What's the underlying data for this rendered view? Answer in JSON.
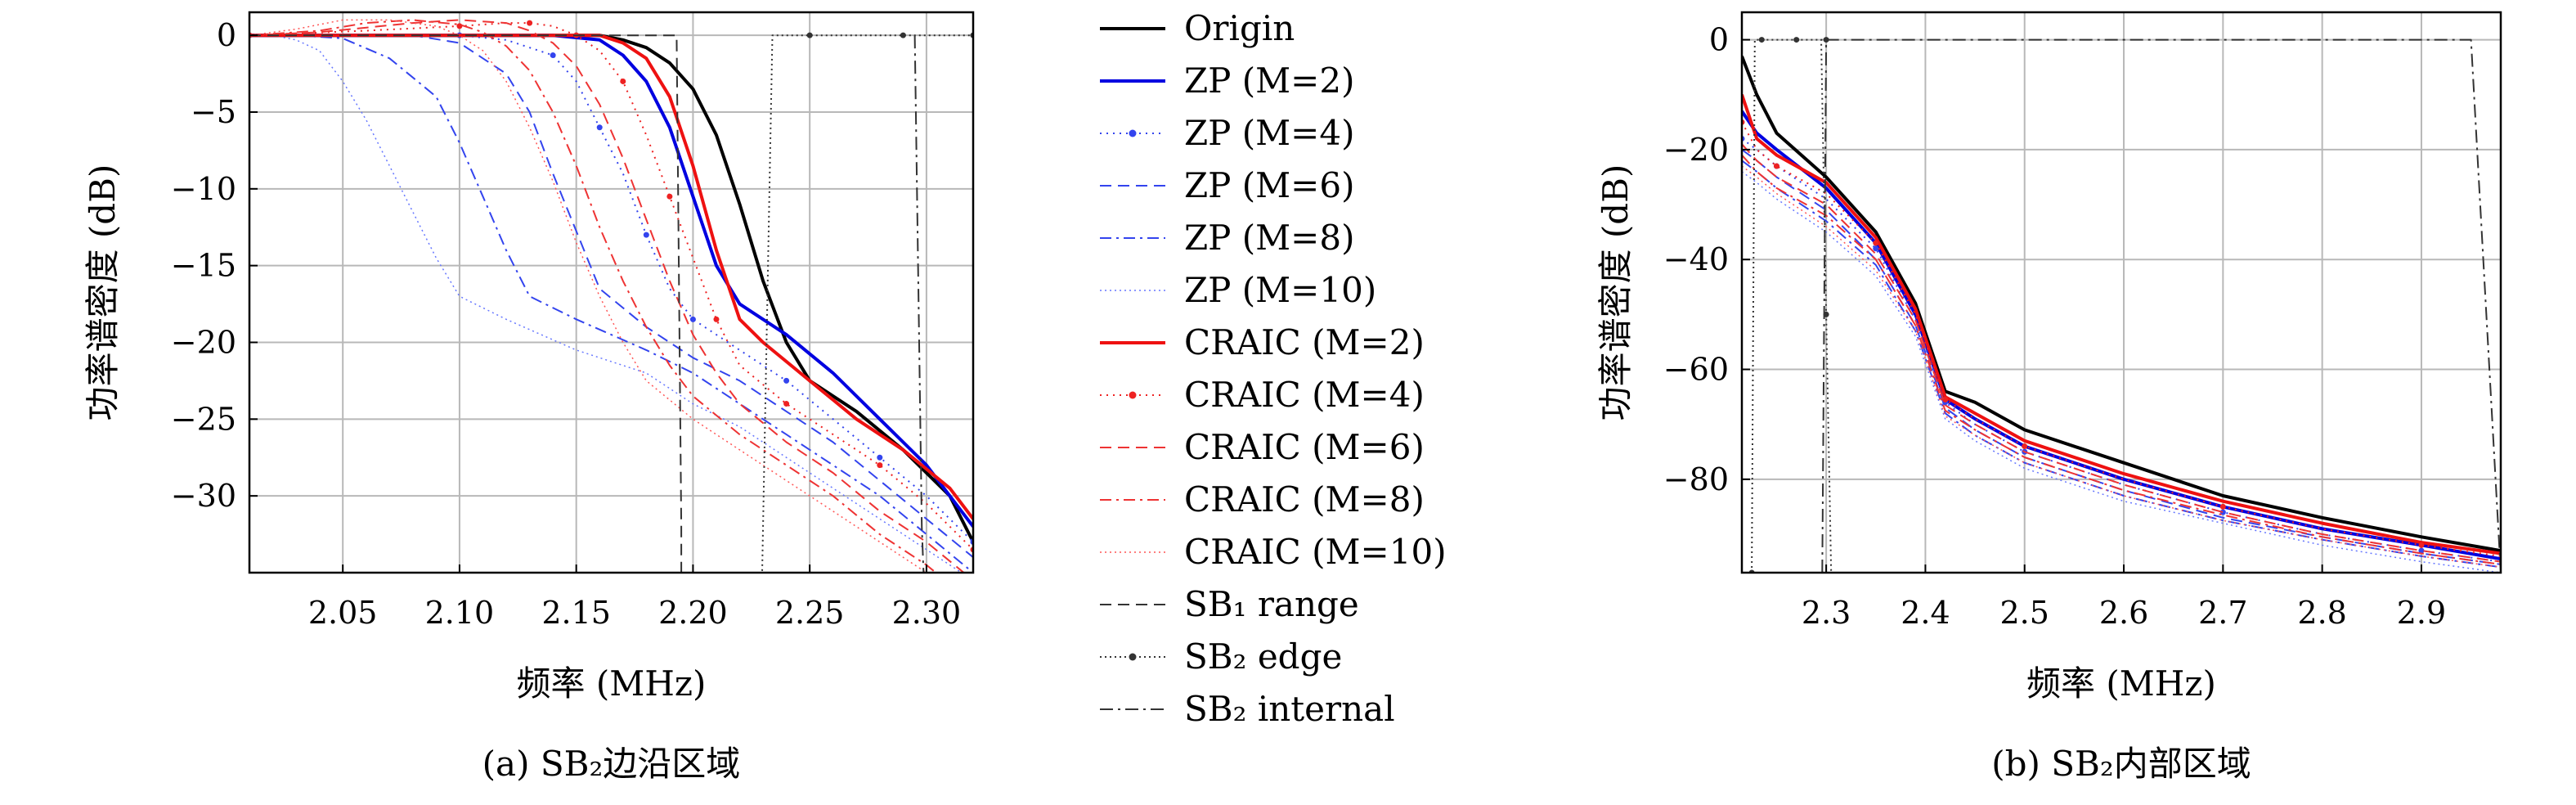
{
  "legend": [
    {
      "id": "origin",
      "label": "Origin",
      "color": "#000000",
      "dash": "",
      "width": 4,
      "marker": false
    },
    {
      "id": "zp2",
      "label": "ZP (M=2)",
      "color": "#0000e0",
      "dash": "",
      "width": 4,
      "marker": false
    },
    {
      "id": "zp4",
      "label": "ZP (M=4)",
      "color": "#3344ee",
      "dash": "2 6",
      "width": 2,
      "marker": true
    },
    {
      "id": "zp6",
      "label": "ZP (M=6)",
      "color": "#3344ee",
      "dash": "14 8",
      "width": 2,
      "marker": false
    },
    {
      "id": "zp8",
      "label": "ZP (M=8)",
      "color": "#3344ee",
      "dash": "14 6 3 6",
      "width": 2,
      "marker": false
    },
    {
      "id": "zp10",
      "label": "ZP (M=10)",
      "color": "#6677ff",
      "dash": "2 4",
      "width": 1.5,
      "marker": false
    },
    {
      "id": "craic2",
      "label": "CRAIC (M=2)",
      "color": "#ee1111",
      "dash": "",
      "width": 4,
      "marker": false
    },
    {
      "id": "craic4",
      "label": "CRAIC (M=4)",
      "color": "#ee2222",
      "dash": "2 6",
      "width": 2,
      "marker": true
    },
    {
      "id": "craic6",
      "label": "CRAIC (M=6)",
      "color": "#ee3333",
      "dash": "14 8",
      "width": 2,
      "marker": false
    },
    {
      "id": "craic8",
      "label": "CRAIC (M=8)",
      "color": "#ee3333",
      "dash": "14 6 3 6",
      "width": 2,
      "marker": false
    },
    {
      "id": "craic10",
      "label": "CRAIC (M=10)",
      "color": "#ff5555",
      "dash": "2 4",
      "width": 1.5,
      "marker": false
    },
    {
      "id": "sb1",
      "label": "SB₁ range",
      "color": "#333333",
      "dash": "14 8",
      "width": 2,
      "marker": false
    },
    {
      "id": "sb2edge",
      "label": "SB₂ edge",
      "color": "#333333",
      "dash": "2 4",
      "width": 2,
      "marker": true
    },
    {
      "id": "sb2int",
      "label": "SB₂ internal",
      "color": "#333333",
      "dash": "16 6 3 6",
      "width": 2,
      "marker": false
    }
  ],
  "chart_data": [
    {
      "type": "line",
      "caption": "(a) SB₂边沿区域",
      "xlabel": "频率 (MHz)",
      "ylabel": "功率谱密度 (dB)",
      "xlim": [
        2.01,
        2.32
      ],
      "ylim": [
        -35,
        1.5
      ],
      "xticks": [
        2.05,
        2.1,
        2.15,
        2.2,
        2.25,
        2.3
      ],
      "yticks": [
        0,
        -5,
        -10,
        -15,
        -20,
        -25,
        -30
      ],
      "grid": true,
      "series": [
        {
          "id": "origin",
          "x": [
            2.01,
            2.05,
            2.1,
            2.15,
            2.16,
            2.17,
            2.18,
            2.19,
            2.2,
            2.21,
            2.22,
            2.23,
            2.24,
            2.25,
            2.27,
            2.29,
            2.31,
            2.32
          ],
          "y": [
            0,
            0,
            0,
            0,
            0,
            -0.3,
            -0.8,
            -1.8,
            -3.5,
            -6.5,
            -11,
            -16,
            -20,
            -22.5,
            -24.5,
            -27,
            -30,
            -33
          ]
        },
        {
          "id": "zp2",
          "x": [
            2.01,
            2.05,
            2.1,
            2.14,
            2.16,
            2.17,
            2.18,
            2.19,
            2.2,
            2.21,
            2.22,
            2.24,
            2.26,
            2.28,
            2.3,
            2.32
          ],
          "y": [
            0,
            0,
            0,
            0,
            -0.3,
            -1.3,
            -3,
            -6,
            -10.5,
            -15,
            -17.5,
            -19.5,
            -22,
            -25,
            -28,
            -32
          ]
        },
        {
          "id": "zp4",
          "x": [
            2.01,
            2.05,
            2.1,
            2.12,
            2.14,
            2.15,
            2.16,
            2.17,
            2.18,
            2.19,
            2.2,
            2.22,
            2.24,
            2.26,
            2.28,
            2.3,
            2.32
          ],
          "y": [
            0,
            0,
            0,
            -0.3,
            -1.3,
            -3,
            -6,
            -9,
            -13,
            -16.5,
            -18.5,
            -20.5,
            -22.5,
            -25,
            -27.5,
            -30,
            -33
          ]
        },
        {
          "id": "zp6",
          "x": [
            2.01,
            2.04,
            2.08,
            2.1,
            2.12,
            2.13,
            2.14,
            2.16,
            2.18,
            2.2,
            2.22,
            2.24,
            2.26,
            2.28,
            2.3,
            2.32
          ],
          "y": [
            0,
            0,
            0,
            -0.5,
            -2.5,
            -5,
            -9,
            -16.5,
            -19,
            -21,
            -22.5,
            -24.5,
            -26.5,
            -29,
            -31.5,
            -34
          ]
        },
        {
          "id": "zp8",
          "x": [
            2.01,
            2.03,
            2.05,
            2.07,
            2.09,
            2.1,
            2.11,
            2.12,
            2.13,
            2.15,
            2.18,
            2.2,
            2.22,
            2.24,
            2.26,
            2.28,
            2.3,
            2.32
          ],
          "y": [
            0,
            0,
            -0.2,
            -1.5,
            -4,
            -7,
            -10.5,
            -14,
            -17,
            -18.5,
            -20.5,
            -22,
            -24,
            -26,
            -28,
            -30,
            -32.5,
            -35
          ]
        },
        {
          "id": "zp10",
          "x": [
            2.01,
            2.02,
            2.03,
            2.04,
            2.05,
            2.06,
            2.07,
            2.08,
            2.09,
            2.1,
            2.12,
            2.15,
            2.18,
            2.2,
            2.22,
            2.24,
            2.26,
            2.28,
            2.3,
            2.32
          ],
          "y": [
            0,
            0,
            -0.3,
            -1,
            -3,
            -5.5,
            -8.5,
            -11.5,
            -14.5,
            -17,
            -18.5,
            -20.5,
            -22,
            -24,
            -25.5,
            -27.5,
            -29.5,
            -31.5,
            -33.5,
            -35.5
          ]
        },
        {
          "id": "craic2",
          "x": [
            2.01,
            2.05,
            2.1,
            2.15,
            2.16,
            2.17,
            2.18,
            2.19,
            2.2,
            2.21,
            2.22,
            2.23,
            2.25,
            2.27,
            2.29,
            2.31,
            2.32
          ],
          "y": [
            0,
            0,
            0,
            0,
            0,
            -0.5,
            -1.5,
            -4,
            -8.5,
            -14,
            -18.5,
            -20,
            -22.5,
            -25,
            -27,
            -29.5,
            -31.5
          ]
        },
        {
          "id": "craic4",
          "x": [
            2.01,
            2.06,
            2.1,
            2.12,
            2.13,
            2.14,
            2.15,
            2.16,
            2.17,
            2.18,
            2.19,
            2.2,
            2.21,
            2.22,
            2.24,
            2.26,
            2.28,
            2.3,
            2.32
          ],
          "y": [
            0,
            0.3,
            0.6,
            0.8,
            0.8,
            0.6,
            0,
            -1,
            -3,
            -6.5,
            -10.5,
            -14.5,
            -18.5,
            -21.5,
            -24,
            -26,
            -28,
            -30.5,
            -33.5
          ]
        },
        {
          "id": "craic6",
          "x": [
            2.01,
            2.04,
            2.08,
            2.1,
            2.12,
            2.13,
            2.14,
            2.15,
            2.16,
            2.17,
            2.18,
            2.19,
            2.2,
            2.21,
            2.22,
            2.24,
            2.26,
            2.28,
            2.3,
            2.32
          ],
          "y": [
            0,
            0.2,
            0.8,
            1,
            0.8,
            0.3,
            -0.5,
            -2,
            -4.5,
            -8,
            -12,
            -16,
            -19.5,
            -22,
            -24,
            -26.5,
            -28.5,
            -31,
            -33,
            -35.5
          ]
        },
        {
          "id": "craic8",
          "x": [
            2.01,
            2.04,
            2.06,
            2.08,
            2.1,
            2.11,
            2.12,
            2.13,
            2.14,
            2.15,
            2.16,
            2.17,
            2.18,
            2.19,
            2.2,
            2.22,
            2.24,
            2.26,
            2.28,
            2.3,
            2.32
          ],
          "y": [
            0,
            0.3,
            0.8,
            1,
            0.7,
            0.2,
            -0.7,
            -2.3,
            -5,
            -8.5,
            -12.5,
            -16,
            -19,
            -21.5,
            -23.5,
            -26,
            -28,
            -30,
            -32.5,
            -34.5,
            -37
          ]
        },
        {
          "id": "craic10",
          "x": [
            2.01,
            2.03,
            2.05,
            2.07,
            2.09,
            2.1,
            2.11,
            2.12,
            2.13,
            2.14,
            2.15,
            2.16,
            2.17,
            2.18,
            2.2,
            2.22,
            2.24,
            2.26,
            2.28,
            2.3,
            2.32
          ],
          "y": [
            0,
            0.4,
            1,
            1,
            0.6,
            0,
            -1,
            -3,
            -6,
            -9.5,
            -13.5,
            -17,
            -20,
            -22.5,
            -25,
            -27,
            -29,
            -31,
            -33,
            -35,
            -37
          ]
        },
        {
          "id": "sb1",
          "x": [
            2.01,
            2.193,
            2.195,
            2.195
          ],
          "y": [
            0,
            0,
            -32,
            -40
          ]
        },
        {
          "id": "sb2edge",
          "x": [
            2.229,
            2.234,
            2.25,
            2.27,
            2.29,
            2.3,
            2.32
          ],
          "y": [
            -40,
            0,
            0,
            0,
            0,
            0,
            0
          ]
        },
        {
          "id": "sb2int",
          "x": [
            2.295,
            2.298,
            2.3
          ],
          "y": [
            0,
            -32,
            -40
          ]
        }
      ]
    },
    {
      "type": "line",
      "caption": "(b) SB₂内部区域",
      "xlabel": "频率 (MHz)",
      "ylabel": "功率谱密度 (dB)",
      "xlim": [
        2.215,
        2.98
      ],
      "ylim": [
        -97,
        5
      ],
      "xticks": [
        2.3,
        2.4,
        2.5,
        2.6,
        2.7,
        2.8,
        2.9
      ],
      "yticks": [
        0,
        -20,
        -40,
        -60,
        -80
      ],
      "grid": true,
      "series": [
        {
          "id": "origin",
          "x": [
            2.215,
            2.23,
            2.25,
            2.3,
            2.35,
            2.39,
            2.42,
            2.45,
            2.5,
            2.6,
            2.7,
            2.8,
            2.9,
            2.98
          ],
          "y": [
            -3,
            -10,
            -17,
            -25,
            -35,
            -48,
            -64,
            -66,
            -71,
            -77,
            -83,
            -87,
            -90.5,
            -93
          ]
        },
        {
          "id": "zp2",
          "x": [
            2.215,
            2.23,
            2.25,
            2.3,
            2.35,
            2.39,
            2.42,
            2.45,
            2.5,
            2.6,
            2.7,
            2.8,
            2.9,
            2.98
          ],
          "y": [
            -13,
            -17,
            -20,
            -27,
            -37,
            -50,
            -65.5,
            -69,
            -74,
            -80,
            -85,
            -89,
            -92,
            -94.5
          ]
        },
        {
          "id": "zp4",
          "x": [
            2.215,
            2.23,
            2.25,
            2.3,
            2.35,
            2.39,
            2.42,
            2.45,
            2.5,
            2.6,
            2.7,
            2.8,
            2.9,
            2.98
          ],
          "y": [
            -18,
            -20,
            -23,
            -29,
            -38,
            -51,
            -66,
            -70,
            -75,
            -81,
            -86,
            -90,
            -93,
            -95
          ]
        },
        {
          "id": "zp6",
          "x": [
            2.215,
            2.23,
            2.25,
            2.3,
            2.35,
            2.39,
            2.42,
            2.45,
            2.5,
            2.6,
            2.7,
            2.8,
            2.9,
            2.98
          ],
          "y": [
            -20,
            -22,
            -25,
            -31,
            -40,
            -52,
            -67,
            -71,
            -76,
            -82,
            -87,
            -90.5,
            -93.5,
            -95.5
          ]
        },
        {
          "id": "zp8",
          "x": [
            2.215,
            2.23,
            2.25,
            2.3,
            2.35,
            2.39,
            2.42,
            2.45,
            2.5,
            2.6,
            2.7,
            2.8,
            2.9,
            2.98
          ],
          "y": [
            -22,
            -24,
            -27,
            -33,
            -41,
            -53,
            -68,
            -72,
            -77,
            -83,
            -87.5,
            -91,
            -94,
            -96
          ]
        },
        {
          "id": "zp10",
          "x": [
            2.215,
            2.23,
            2.25,
            2.3,
            2.35,
            2.39,
            2.42,
            2.45,
            2.5,
            2.6,
            2.7,
            2.8,
            2.9,
            2.98
          ],
          "y": [
            -24,
            -26,
            -29,
            -35,
            -43,
            -54,
            -69,
            -73,
            -78,
            -84,
            -88,
            -92,
            -95,
            -97
          ]
        },
        {
          "id": "craic2",
          "x": [
            2.215,
            2.23,
            2.25,
            2.3,
            2.35,
            2.39,
            2.42,
            2.45,
            2.5,
            2.6,
            2.7,
            2.8,
            2.9,
            2.98
          ],
          "y": [
            -10,
            -18,
            -21,
            -26,
            -36,
            -49,
            -65,
            -68,
            -73,
            -79,
            -84,
            -88,
            -91.5,
            -93.5
          ]
        },
        {
          "id": "craic4",
          "x": [
            2.215,
            2.23,
            2.25,
            2.3,
            2.35,
            2.39,
            2.42,
            2.45,
            2.5,
            2.6,
            2.7,
            2.8,
            2.9,
            2.98
          ],
          "y": [
            -15,
            -20,
            -23,
            -28,
            -37,
            -50,
            -65.5,
            -69,
            -74,
            -80,
            -85,
            -89,
            -92,
            -94
          ]
        },
        {
          "id": "craic6",
          "x": [
            2.215,
            2.23,
            2.25,
            2.3,
            2.35,
            2.39,
            2.42,
            2.45,
            2.5,
            2.6,
            2.7,
            2.8,
            2.9,
            2.98
          ],
          "y": [
            -19,
            -22,
            -25,
            -30,
            -39,
            -51,
            -66.5,
            -70,
            -75,
            -81,
            -86,
            -90,
            -93,
            -95
          ]
        },
        {
          "id": "craic8",
          "x": [
            2.215,
            2.23,
            2.25,
            2.3,
            2.35,
            2.39,
            2.42,
            2.45,
            2.5,
            2.6,
            2.7,
            2.8,
            2.9,
            2.98
          ],
          "y": [
            -21,
            -24,
            -27,
            -32,
            -40,
            -52,
            -67.5,
            -71,
            -76,
            -82,
            -86.5,
            -90.5,
            -93.5,
            -95.5
          ]
        },
        {
          "id": "craic10",
          "x": [
            2.215,
            2.23,
            2.25,
            2.3,
            2.35,
            2.39,
            2.42,
            2.45,
            2.5,
            2.6,
            2.7,
            2.8,
            2.9,
            2.98
          ],
          "y": [
            -23,
            -25,
            -28,
            -34,
            -42,
            -53,
            -68.5,
            -72,
            -77,
            -83,
            -87.5,
            -91,
            -94,
            -96
          ]
        },
        {
          "id": "sb2edge",
          "x": [
            2.225,
            2.228,
            2.235,
            2.25,
            2.27,
            2.29,
            2.3,
            2.295,
            2.3,
            2.305
          ],
          "y": [
            -97,
            0,
            0,
            0,
            0,
            0,
            0,
            0,
            -50,
            -97
          ]
        },
        {
          "id": "sb2int",
          "x": [
            2.296,
            2.3,
            2.6,
            2.95,
            2.98
          ],
          "y": [
            -97,
            0,
            0,
            0,
            -97
          ]
        }
      ]
    }
  ]
}
